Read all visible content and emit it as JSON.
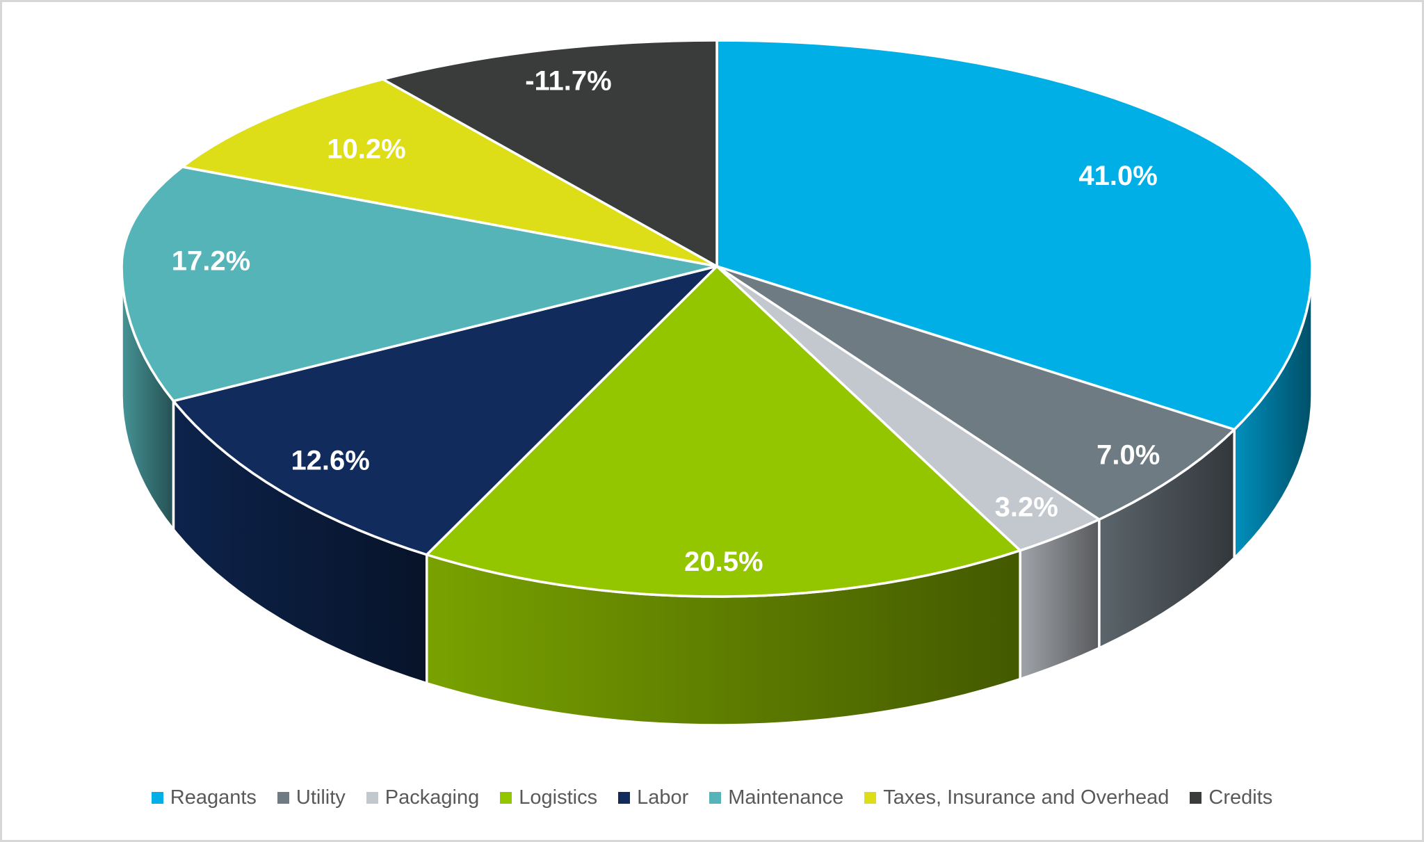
{
  "chart_data": {
    "type": "pie",
    "style": "3d",
    "legend_position": "bottom",
    "grid": false,
    "label_color": "#FFFFFF",
    "legend_text_color": "#595959",
    "background": "#FFFFFF",
    "border_color": "#D7D7D7",
    "slices": [
      {
        "label": "Reagants",
        "value": 41.0,
        "display": "41.0%",
        "color": "#00AFE6"
      },
      {
        "label": "Utility",
        "value": 7.0,
        "display": "7.0%",
        "color": "#6F7B83"
      },
      {
        "label": "Packaging",
        "value": 3.2,
        "display": "3.2%",
        "color": "#C3C8CE"
      },
      {
        "label": "Logistics",
        "value": 20.5,
        "display": "20.5%",
        "color": "#94C600"
      },
      {
        "label": "Labor",
        "value": 12.6,
        "display": "12.6%",
        "color": "#102B5C"
      },
      {
        "label": "Maintenance",
        "value": 17.2,
        "display": "17.2%",
        "color": "#55B4B8"
      },
      {
        "label": "Taxes, Insurance and Overhead",
        "value": 10.2,
        "display": "10.2%",
        "color": "#DDDE18"
      },
      {
        "label": "Credits",
        "value": -11.7,
        "display": "-11.7%",
        "color": "#3A3C3B"
      }
    ]
  }
}
